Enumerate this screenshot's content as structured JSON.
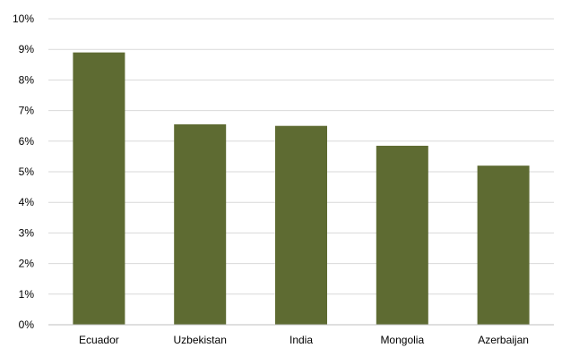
{
  "chart_data": {
    "type": "bar",
    "title": "",
    "xlabel": "",
    "ylabel": "",
    "categories": [
      "Ecuador",
      "Uzbekistan",
      "India",
      "Mongolia",
      "Azerbaijan"
    ],
    "values": [
      8.9,
      6.55,
      6.5,
      5.85,
      5.2
    ],
    "value_unit": "%",
    "ylim": [
      0,
      10
    ],
    "y_ticks": [
      {
        "value": 0,
        "label": "0%"
      },
      {
        "value": 1,
        "label": "1%"
      },
      {
        "value": 2,
        "label": "2%"
      },
      {
        "value": 3,
        "label": "3%"
      },
      {
        "value": 4,
        "label": "4%"
      },
      {
        "value": 5,
        "label": "5%"
      },
      {
        "value": 6,
        "label": "6%"
      },
      {
        "value": 7,
        "label": "7%"
      },
      {
        "value": 8,
        "label": "8%"
      },
      {
        "value": 9,
        "label": "9%"
      },
      {
        "value": 10,
        "label": "10%"
      }
    ],
    "grid": true,
    "legend": "none",
    "colors": {
      "bar": "#5e6b32",
      "grid": "#d9d9d9",
      "axis": "#bfbfbf",
      "text": "#000000"
    }
  }
}
